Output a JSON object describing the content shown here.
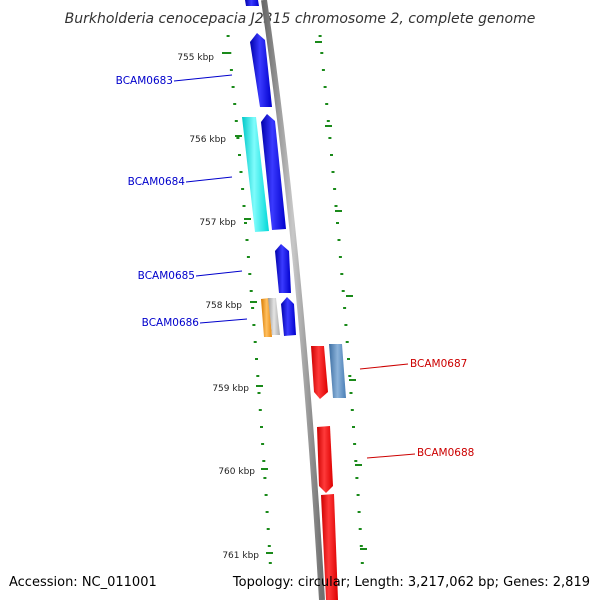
{
  "title": "Burkholderia cenocepacia J2315 chromosome 2, complete genome",
  "footer": {
    "accession": "Accession: NC_011001",
    "stats": "Topology: circular; Length: 3,217,062 bp; Genes: 2,819"
  },
  "colors": {
    "backbone": "#8c8c8c",
    "tick": "#1a8a1a",
    "fwd_label": "#0000cc",
    "rev_label": "#cc0000",
    "fwd_gene": "#0000ee",
    "rev_gene": "#ee0000",
    "fwd_cyan": "#00e5e5",
    "rev_steel": "#4f86c0",
    "orange": "#f09010",
    "gray": "#b4b4b4"
  },
  "ticks": [
    {
      "label": "755 kbp"
    },
    {
      "label": "756 kbp"
    },
    {
      "label": "757 kbp"
    },
    {
      "label": "758 kbp"
    },
    {
      "label": "759 kbp"
    },
    {
      "label": "760 kbp"
    },
    {
      "label": "761 kbp"
    }
  ],
  "gene_labels": [
    {
      "text": "BCAM0683",
      "strand": "forward"
    },
    {
      "text": "BCAM0684",
      "strand": "forward"
    },
    {
      "text": "BCAM0685",
      "strand": "forward"
    },
    {
      "text": "BCAM0686",
      "strand": "forward"
    },
    {
      "text": "BCAM0687",
      "strand": "reverse"
    },
    {
      "text": "BCAM0688",
      "strand": "reverse"
    }
  ]
}
